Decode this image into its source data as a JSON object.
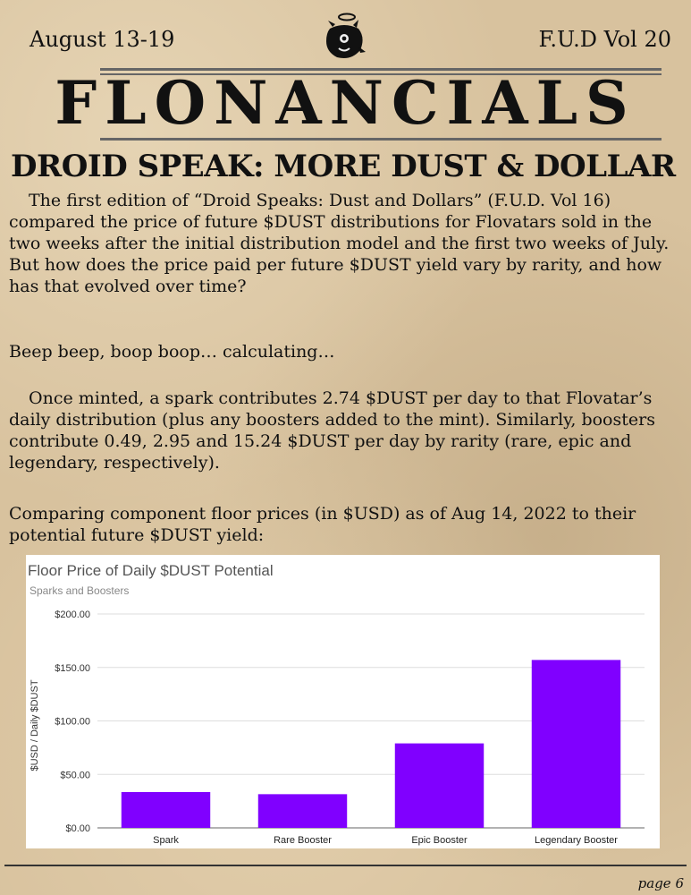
{
  "header": {
    "date_range": "August 13-19",
    "volume": "F.U.D Vol 20",
    "logo_icon": "droid-mascot-icon"
  },
  "masthead": "FLONANCIALS",
  "headline": "DROID SPEAK: MORE DUST & DOLLAR",
  "paragraphs": [
    "The first edition of “Droid Speaks: Dust and Dollars” (F.U.D. Vol 16) compared the price of future $DUST distributions for Flovatars sold in the two weeks after the initial distribution model and the first two weeks of July. But how does the price paid per future $DUST yield vary by rarity, and how has that evolved over time?",
    "Beep beep, boop boop… calculating…",
    "Once minted, a spark contributes 2.74 $DUST per day to that Flovatar’s daily distribution (plus any boosters added to the mint). Similarly, boosters contribute 0.49, 2.95 and 15.24 $DUST per day by rarity (rare, epic and legendary, respectively).",
    "Comparing component floor prices (in $USD) as of Aug 14, 2022 to their potential future $DUST yield:"
  ],
  "chart_data": {
    "type": "bar",
    "title": "Floor Price of Daily $DUST Potential",
    "subtitle": "Sparks and Boosters",
    "xlabel": "",
    "ylabel": "$USD / Daily $DUST",
    "categories": [
      "Spark",
      "Rare Booster",
      "Epic Booster",
      "Legendary Booster"
    ],
    "values": [
      33.5,
      31.5,
      79,
      157
    ],
    "ylim": [
      0,
      200
    ],
    "yticks": [
      "$0.00",
      "$50.00",
      "$100.00",
      "$150.00",
      "$200.00"
    ],
    "ytick_values": [
      0,
      50,
      100,
      150,
      200
    ],
    "bar_color": "#8000ff",
    "grid": true
  },
  "footer": {
    "page": "page 6"
  }
}
